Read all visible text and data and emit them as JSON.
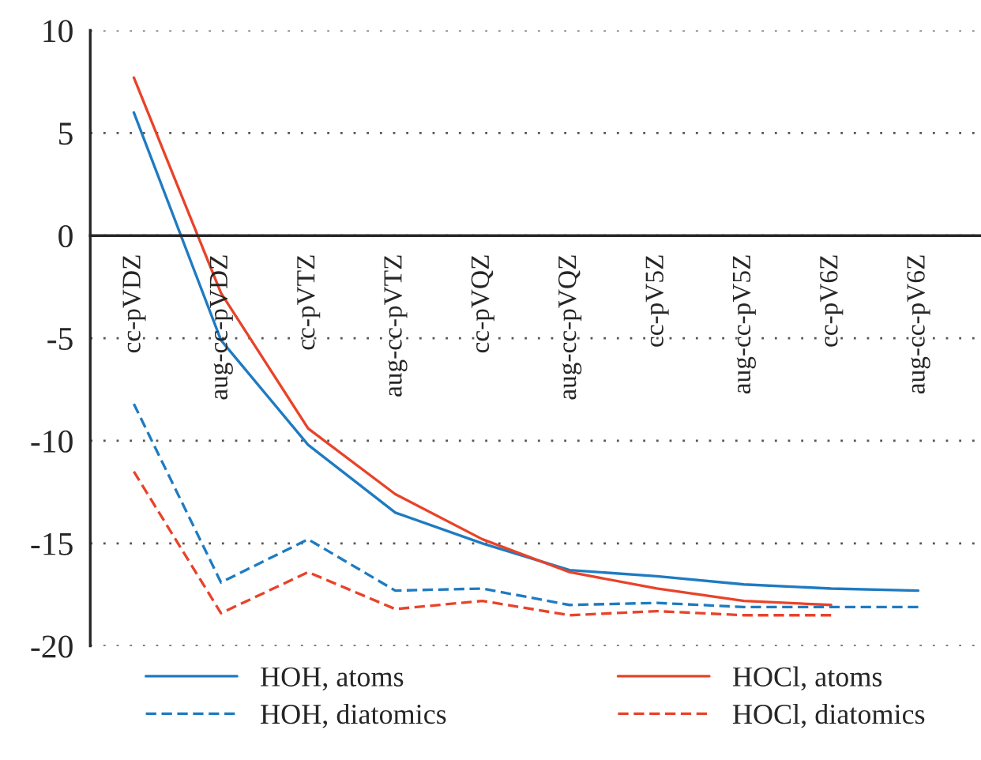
{
  "chart_data": {
    "type": "line",
    "categories": [
      "cc-pVDZ",
      "aug-cc-pVDZ",
      "cc-pVTZ",
      "aug-cc-pVTZ",
      "cc-pVQZ",
      "aug-cc-pVQZ",
      "cc-pV5Z",
      "aug-cc-pV5Z",
      "cc-pV6Z",
      "aug-cc-pV6Z"
    ],
    "series": [
      {
        "name": "HOH, atoms",
        "color": "#1f7bc1",
        "line_style": "solid",
        "values": [
          6.0,
          -5.1,
          -10.2,
          -13.5,
          -15.0,
          -16.3,
          -16.6,
          -17.0,
          -17.2,
          -17.3
        ]
      },
      {
        "name": "HOCl, atoms",
        "color": "#e8432a",
        "line_style": "solid",
        "values": [
          7.7,
          -2.8,
          -9.4,
          -12.6,
          -14.8,
          -16.4,
          -17.2,
          -17.8,
          -18.0,
          null
        ]
      },
      {
        "name": "HOH, diatomics",
        "color": "#1f7bc1",
        "line_style": "dashed",
        "values": [
          -8.2,
          -16.9,
          -14.8,
          -17.3,
          -17.2,
          -18.0,
          -17.9,
          -18.1,
          -18.1,
          -18.1
        ]
      },
      {
        "name": "HOCl, diatomics",
        "color": "#e8432a",
        "line_style": "dashed",
        "values": [
          -11.5,
          -18.4,
          -16.4,
          -18.2,
          -17.8,
          -18.5,
          -18.3,
          -18.5,
          -18.5,
          null
        ]
      }
    ],
    "ylim": [
      -20,
      10
    ],
    "yticks": [
      -20,
      -15,
      -10,
      -5,
      0,
      5,
      10
    ],
    "grid": "y",
    "legend": "bottom",
    "marker": "none"
  }
}
